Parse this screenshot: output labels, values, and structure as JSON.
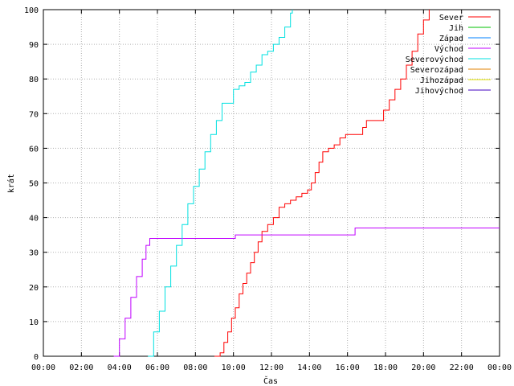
{
  "chart_data": {
    "type": "line",
    "xlabel": "Čas",
    "ylabel": "krát",
    "x_ticks": [
      "00:00",
      "02:00",
      "04:00",
      "06:00",
      "08:00",
      "10:00",
      "12:00",
      "14:00",
      "16:00",
      "18:00",
      "20:00",
      "22:00",
      "00:00"
    ],
    "xlim_hours": [
      0,
      24
    ],
    "ylim": [
      0,
      100
    ],
    "y_ticks": [
      0,
      10,
      20,
      30,
      40,
      50,
      60,
      70,
      80,
      90,
      100
    ],
    "grid": true,
    "legend_position": "top-right",
    "series": [
      {
        "name": "Sever",
        "color": "#ff0000",
        "points": [
          [
            9.0,
            0
          ],
          [
            9.3,
            1
          ],
          [
            9.5,
            4
          ],
          [
            9.7,
            7
          ],
          [
            9.9,
            11
          ],
          [
            10.1,
            14
          ],
          [
            10.3,
            18
          ],
          [
            10.5,
            21
          ],
          [
            10.7,
            24
          ],
          [
            10.9,
            27
          ],
          [
            11.1,
            30
          ],
          [
            11.3,
            33
          ],
          [
            11.5,
            36
          ],
          [
            11.8,
            38
          ],
          [
            12.1,
            40
          ],
          [
            12.4,
            43
          ],
          [
            12.7,
            44
          ],
          [
            13.0,
            45
          ],
          [
            13.3,
            46
          ],
          [
            13.6,
            47
          ],
          [
            13.9,
            48
          ],
          [
            14.1,
            50
          ],
          [
            14.3,
            53
          ],
          [
            14.5,
            56
          ],
          [
            14.7,
            59
          ],
          [
            15.0,
            60
          ],
          [
            15.3,
            61
          ],
          [
            15.6,
            63
          ],
          [
            15.9,
            64
          ],
          [
            16.2,
            64
          ],
          [
            16.5,
            64
          ],
          [
            16.8,
            66
          ],
          [
            17.0,
            68
          ],
          [
            17.3,
            68
          ],
          [
            17.6,
            68
          ],
          [
            17.9,
            71
          ],
          [
            18.2,
            74
          ],
          [
            18.5,
            77
          ],
          [
            18.8,
            80
          ],
          [
            19.1,
            84
          ],
          [
            19.4,
            88
          ],
          [
            19.7,
            93
          ],
          [
            20.0,
            97
          ],
          [
            20.3,
            100
          ]
        ]
      },
      {
        "name": "Jih",
        "color": "#00c000",
        "points": []
      },
      {
        "name": "Západ",
        "color": "#0080ff",
        "points": []
      },
      {
        "name": "Východ",
        "color": "#c000ff",
        "points": [
          [
            3.7,
            0
          ],
          [
            4.0,
            5
          ],
          [
            4.3,
            11
          ],
          [
            4.6,
            17
          ],
          [
            4.9,
            23
          ],
          [
            5.2,
            28
          ],
          [
            5.4,
            32
          ],
          [
            5.6,
            34
          ],
          [
            6.5,
            34
          ],
          [
            7.5,
            34
          ],
          [
            8.5,
            34
          ],
          [
            10.0,
            34
          ],
          [
            10.1,
            35
          ],
          [
            12.0,
            35
          ],
          [
            14.0,
            35
          ],
          [
            16.3,
            35
          ],
          [
            16.4,
            37
          ],
          [
            24.0,
            37
          ]
        ]
      },
      {
        "name": "Severovýchod",
        "color": "#00e0e0",
        "points": [
          [
            5.5,
            0
          ],
          [
            5.8,
            7
          ],
          [
            6.1,
            13
          ],
          [
            6.4,
            20
          ],
          [
            6.7,
            26
          ],
          [
            7.0,
            32
          ],
          [
            7.3,
            38
          ],
          [
            7.6,
            44
          ],
          [
            7.9,
            49
          ],
          [
            8.2,
            54
          ],
          [
            8.5,
            59
          ],
          [
            8.8,
            64
          ],
          [
            9.1,
            68
          ],
          [
            9.4,
            73
          ],
          [
            9.7,
            73
          ],
          [
            10.0,
            77
          ],
          [
            10.3,
            78
          ],
          [
            10.6,
            79
          ],
          [
            10.9,
            82
          ],
          [
            11.2,
            84
          ],
          [
            11.5,
            87
          ],
          [
            11.8,
            88
          ],
          [
            12.1,
            90
          ],
          [
            12.4,
            92
          ],
          [
            12.7,
            95
          ],
          [
            13.0,
            99
          ],
          [
            13.1,
            100
          ]
        ]
      },
      {
        "name": "Severozápad",
        "color": "#e08000",
        "points": []
      },
      {
        "name": "Jihozápad",
        "color": "#e0e000",
        "points": []
      },
      {
        "name": "Jihovýchod",
        "color": "#4000c0",
        "points": []
      }
    ]
  }
}
